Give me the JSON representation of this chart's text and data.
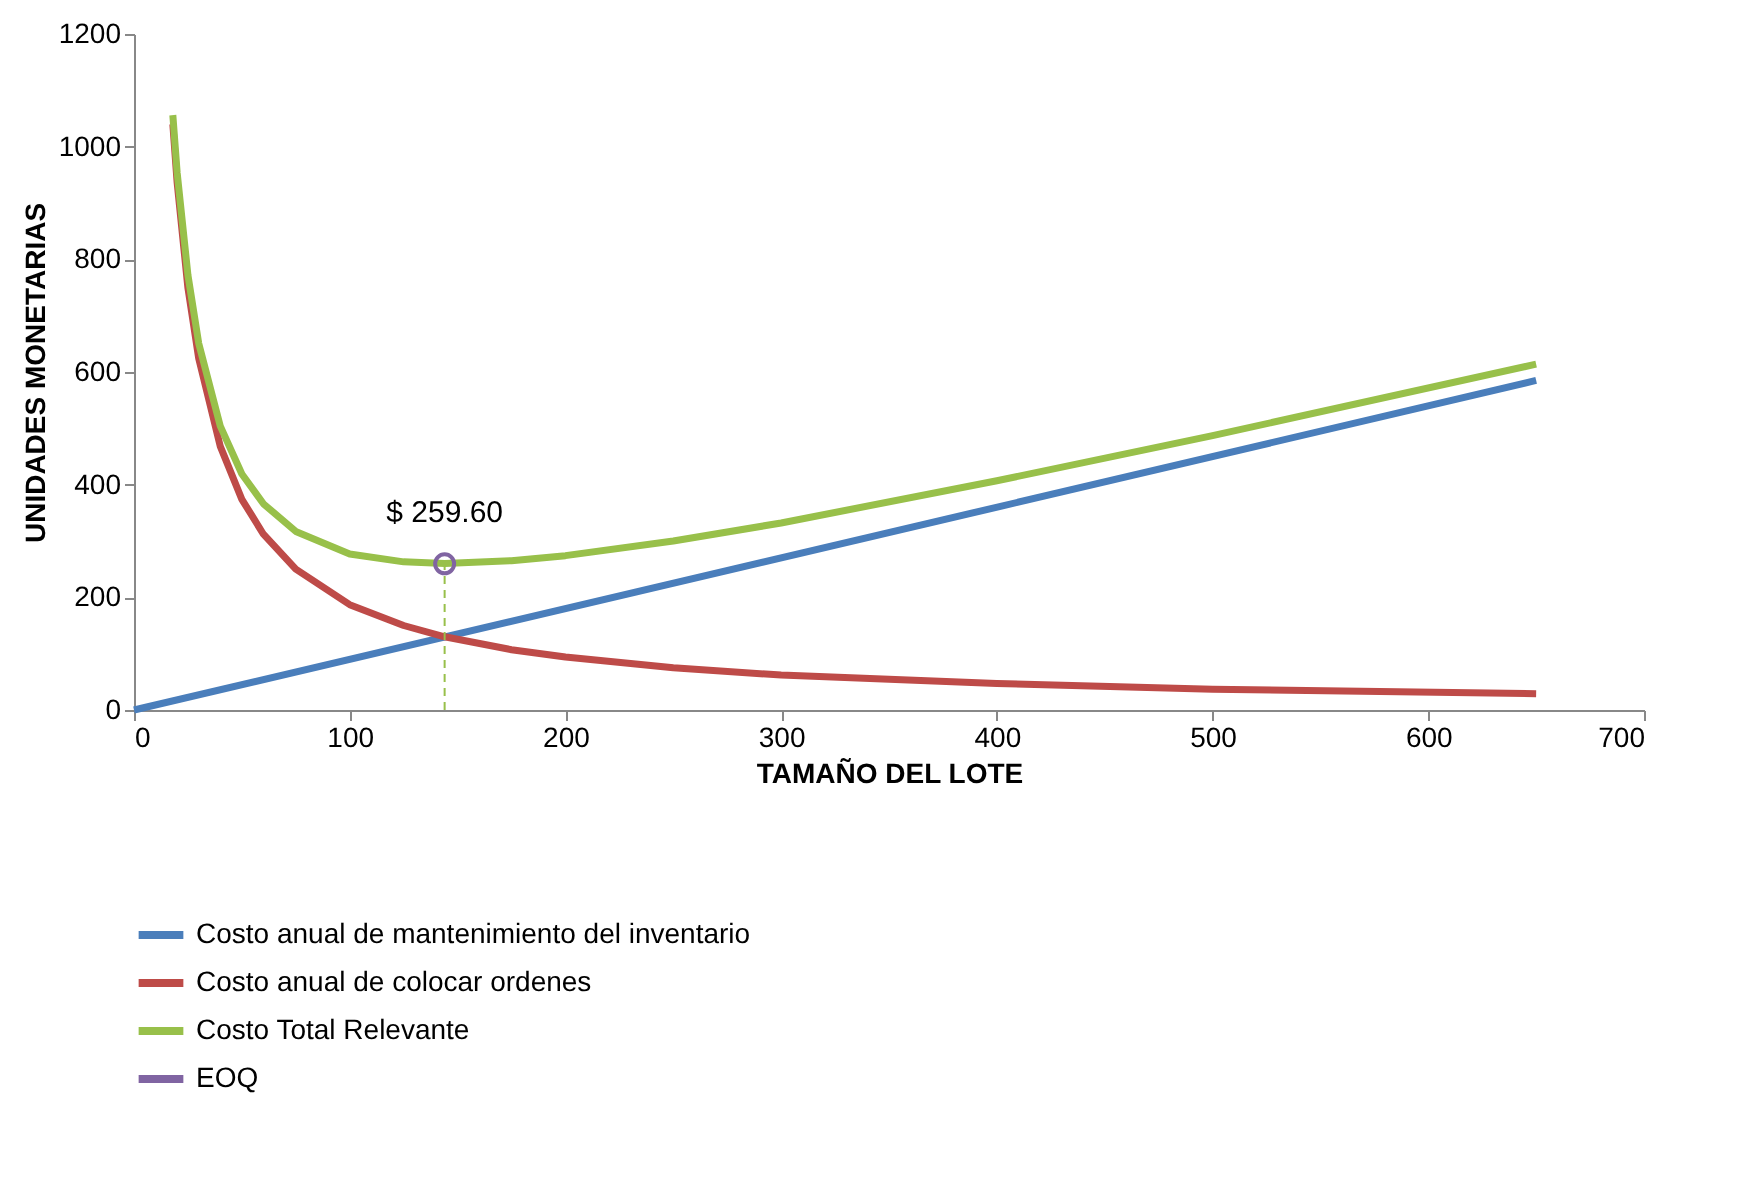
{
  "chart_data": {
    "type": "line",
    "xlabel": "TAMAÑO DEL LOTE",
    "ylabel": "UNIDADES MONETARIAS",
    "xlim": [
      0,
      700
    ],
    "xticks": [
      0,
      100,
      200,
      300,
      400,
      500,
      600,
      700
    ],
    "ylim": [
      0,
      1200
    ],
    "yticks": [
      0,
      200,
      400,
      600,
      800,
      1000,
      1200
    ],
    "grid": false,
    "legend": "bottom",
    "series": [
      {
        "name": "Costo anual de mantenimiento del inventario",
        "color": "#4a7ebb",
        "x": [
          0,
          650
        ],
        "values": [
          0,
          585
        ]
      },
      {
        "name": "Costo anual de colocar ordenes",
        "color": "#be4b48",
        "x": [
          18,
          20,
          25,
          30,
          40,
          50,
          60,
          75,
          100,
          125,
          144,
          175,
          200,
          250,
          300,
          400,
          500,
          650
        ],
        "values": [
          1040,
          936,
          749,
          624,
          468,
          374,
          312,
          250,
          187,
          150,
          130,
          107,
          94,
          75,
          62,
          47,
          37,
          29
        ]
      },
      {
        "name": "Costo Total Relevante",
        "color": "#98c04a",
        "x": [
          18,
          20,
          25,
          30,
          40,
          50,
          60,
          75,
          100,
          125,
          144,
          175,
          200,
          250,
          300,
          400,
          500,
          650
        ],
        "values": [
          1056,
          954,
          772,
          651,
          504,
          419,
          366,
          317,
          277,
          263,
          260,
          265,
          274,
          300,
          332,
          407,
          487,
          614
        ]
      },
      {
        "name": "EOQ",
        "type": "scatter",
        "marker": "circle",
        "color": "#8064a2",
        "x": [
          144
        ],
        "values": [
          259.6
        ]
      }
    ],
    "ref_lines": [
      {
        "axis": "x",
        "value": 144,
        "color": "#98c04a",
        "line_style": "dashed"
      }
    ],
    "annotations": [
      {
        "text": "$ 259.60",
        "x": 144,
        "y": 259.6
      }
    ]
  }
}
